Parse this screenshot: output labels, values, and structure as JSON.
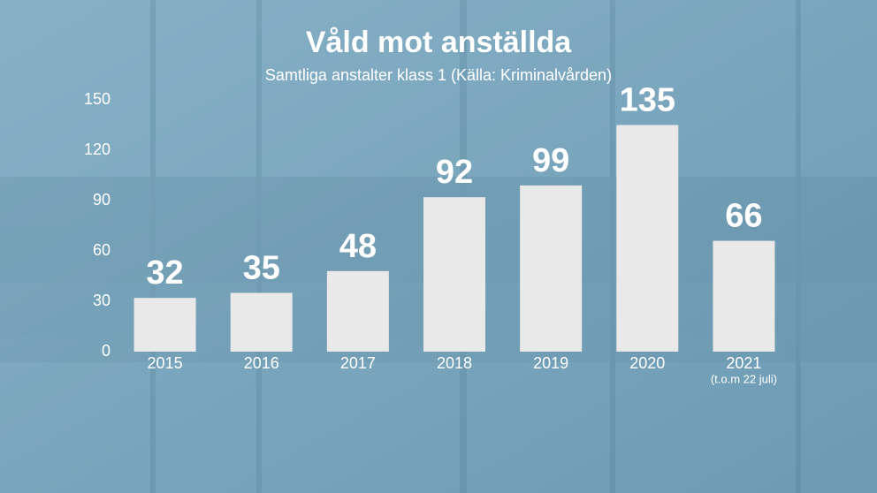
{
  "chart_data": {
    "type": "bar",
    "title": "Våld mot anställda",
    "subtitle": "Samtliga anstalter klass 1 (Källa: Kriminalvården)",
    "categories": [
      "2015",
      "2016",
      "2017",
      "2018",
      "2019",
      "2020",
      "2021"
    ],
    "values": [
      32,
      35,
      48,
      92,
      99,
      135,
      66
    ],
    "annotation": "(t.o.m 22 juli)",
    "color": "#e9e9e9",
    "ylim": [
      0,
      150
    ],
    "yticks": [
      0,
      30,
      60,
      90,
      120,
      150
    ],
    "grid": false
  }
}
